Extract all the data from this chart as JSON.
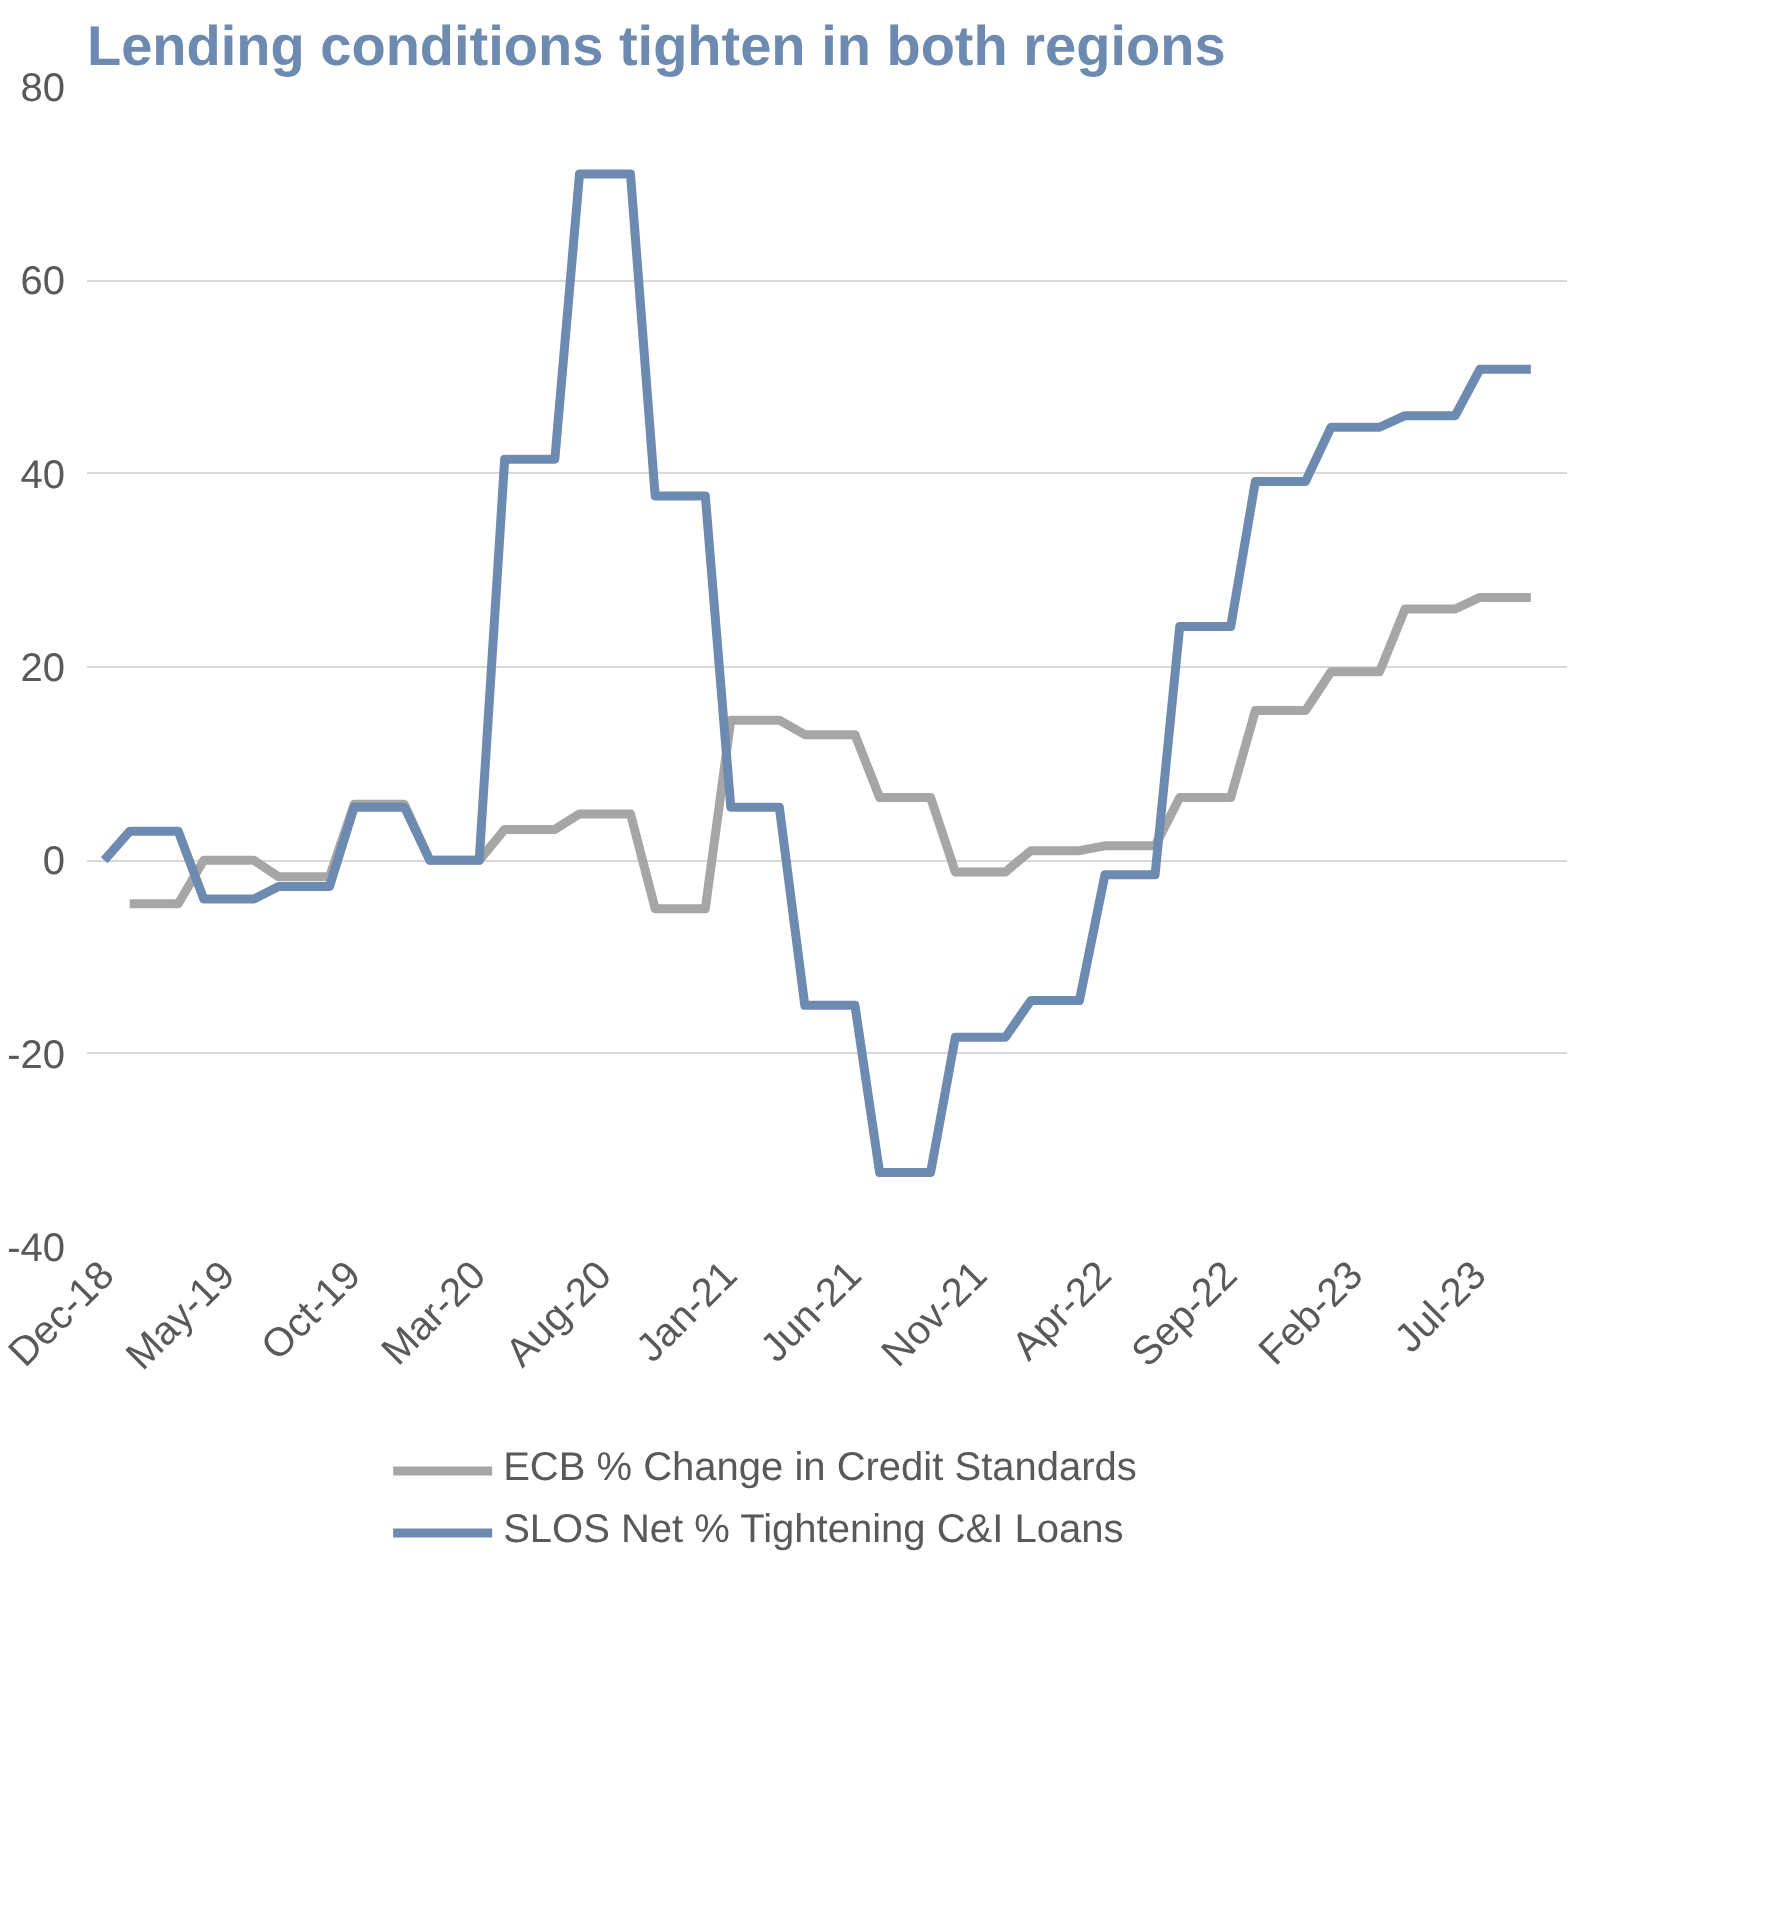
{
  "chart_data": {
    "type": "line",
    "title": "Lending conditions tighten in both regions",
    "x": [
      "2018-12",
      "2019-01",
      "2019-02",
      "2019-03",
      "2019-04",
      "2019-05",
      "2019-06",
      "2019-07",
      "2019-08",
      "2019-09",
      "2019-10",
      "2019-11",
      "2019-12",
      "2020-01",
      "2020-02",
      "2020-03",
      "2020-04",
      "2020-05",
      "2020-06",
      "2020-07",
      "2020-08",
      "2020-09",
      "2020-10",
      "2020-11",
      "2020-12",
      "2021-01",
      "2021-02",
      "2021-03",
      "2021-04",
      "2021-05",
      "2021-06",
      "2021-07",
      "2021-08",
      "2021-09",
      "2021-10",
      "2021-11",
      "2021-12",
      "2022-01",
      "2022-02",
      "2022-03",
      "2022-04",
      "2022-05",
      "2022-06",
      "2022-07",
      "2022-08",
      "2022-09",
      "2022-10",
      "2022-11",
      "2022-12",
      "2023-01",
      "2023-02",
      "2023-03",
      "2023-04",
      "2023-05",
      "2023-06",
      "2023-07",
      "2023-08",
      "2023-09"
    ],
    "series": [
      {
        "name": "ECB % Change in Credit Standards",
        "color": "#a6a6a6",
        "values": [
          null,
          -4.5,
          -4.5,
          -4.5,
          0,
          0,
          0,
          -1.7,
          -1.7,
          -1.7,
          5.8,
          5.8,
          5.8,
          0,
          0,
          0,
          3.2,
          3.2,
          3.2,
          4.8,
          4.8,
          4.8,
          -5,
          -5,
          -5,
          14.5,
          14.5,
          14.5,
          13,
          13,
          13,
          6.5,
          6.5,
          6.5,
          -1.2,
          -1.2,
          -1.2,
          1,
          1,
          1,
          1.5,
          1.5,
          1.5,
          6.5,
          6.5,
          6.5,
          15.5,
          15.5,
          15.5,
          19.5,
          19.5,
          19.5,
          26,
          26,
          26,
          27.2,
          27.2,
          27.2
        ]
      },
      {
        "name": "SLOS Net % Tightening C&I Loans",
        "color": "#6d8ab0",
        "values": [
          0,
          3,
          3,
          3,
          -4,
          -4,
          -4,
          -2.7,
          -2.7,
          -2.7,
          5.5,
          5.5,
          5.5,
          0,
          0,
          0,
          41.5,
          41.5,
          41.5,
          71,
          71,
          71,
          37.7,
          37.7,
          37.7,
          5.5,
          5.5,
          5.5,
          -15,
          -15,
          -15,
          -32.3,
          -32.3,
          -32.3,
          -18.3,
          -18.3,
          -18.3,
          -14.5,
          -14.5,
          -14.5,
          -1.5,
          -1.5,
          -1.5,
          24.2,
          24.2,
          24.2,
          39.2,
          39.2,
          39.2,
          44.8,
          44.8,
          44.8,
          46,
          46,
          46,
          50.8,
          50.8,
          50.8
        ]
      }
    ],
    "xlim": [
      "2018-11-10",
      "2023-10-15"
    ],
    "xticks": [
      {
        "value": "2018-12",
        "label": "Dec-18"
      },
      {
        "value": "2019-05",
        "label": "May-19"
      },
      {
        "value": "2019-10",
        "label": "Oct-19"
      },
      {
        "value": "2020-03",
        "label": "Mar-20"
      },
      {
        "value": "2020-08",
        "label": "Aug-20"
      },
      {
        "value": "2021-01",
        "label": "Jan-21"
      },
      {
        "value": "2021-06",
        "label": "Jun-21"
      },
      {
        "value": "2021-11",
        "label": "Nov-21"
      },
      {
        "value": "2022-04",
        "label": "Apr-22"
      },
      {
        "value": "2022-09",
        "label": "Sep-22"
      },
      {
        "value": "2023-02",
        "label": "Feb-23"
      },
      {
        "value": "2023-07",
        "label": "Jul-23"
      }
    ],
    "ylim": [
      -40,
      80
    ],
    "yticks": [
      -40,
      -20,
      0,
      20,
      40,
      60,
      80
    ],
    "grid": "y",
    "legend": "bottom",
    "line_style": "solid"
  }
}
